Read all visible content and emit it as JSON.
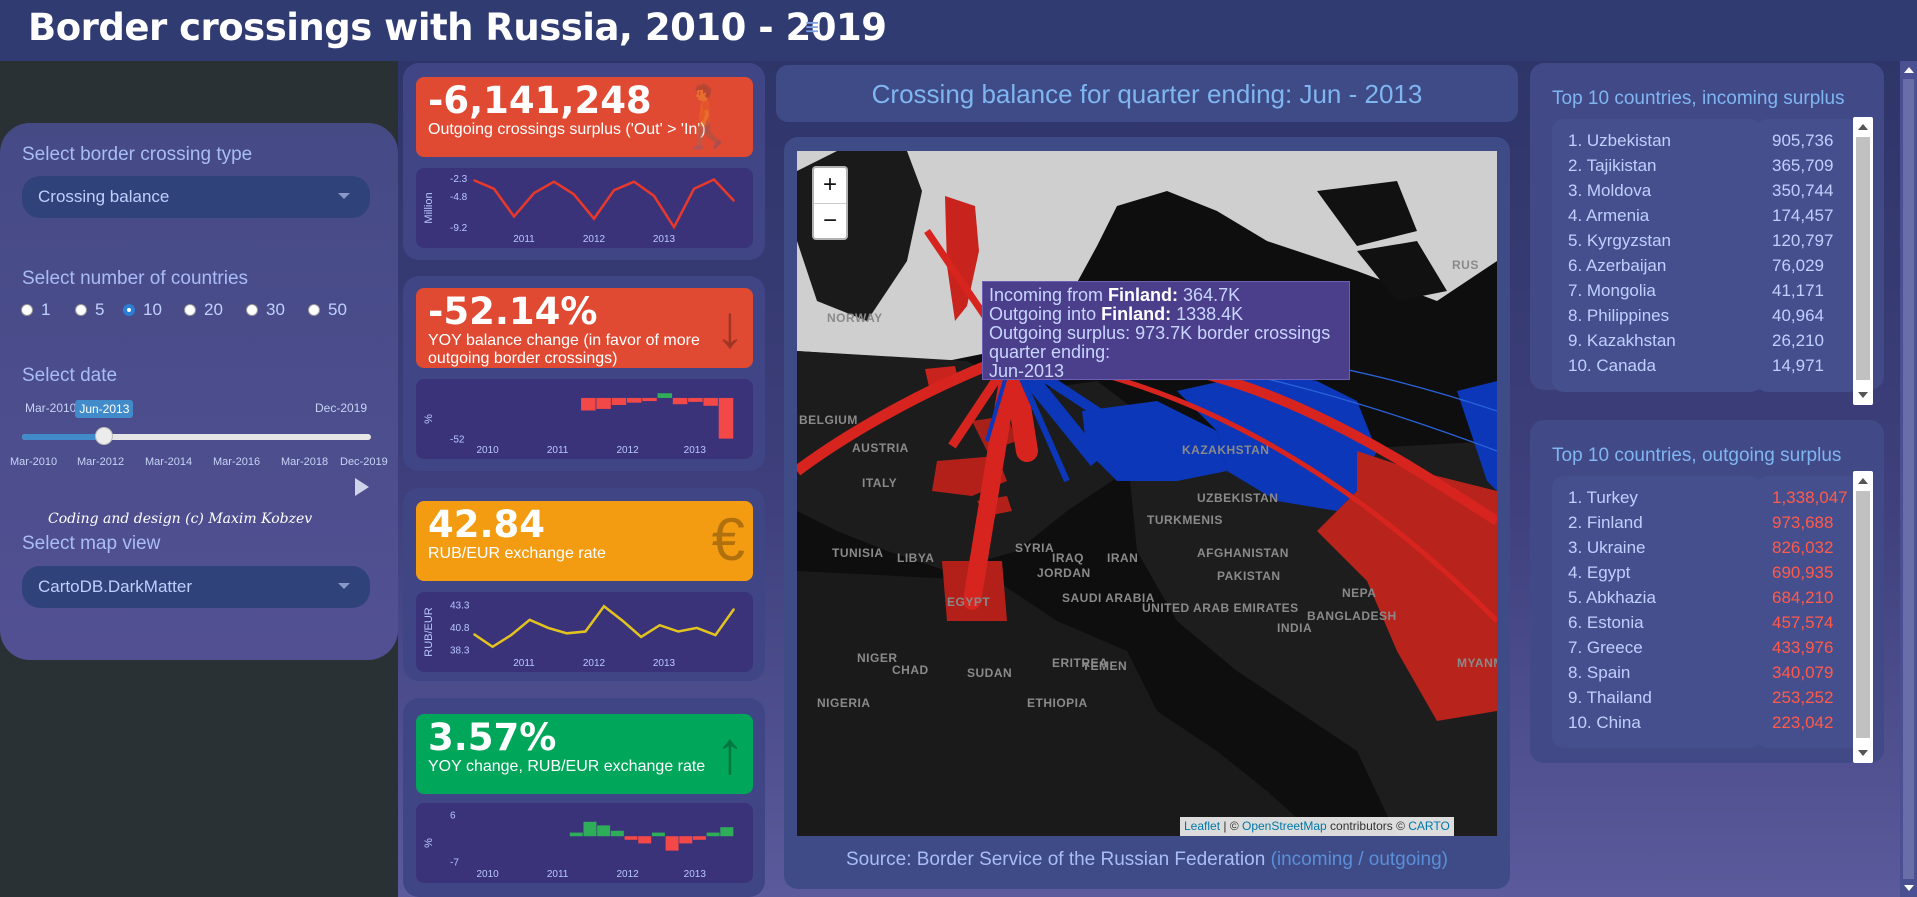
{
  "header": {
    "title": "Border crossings with Russia, 2010 - 2019"
  },
  "sidebar": {
    "crossing_type_label": "Select border crossing type",
    "crossing_type_value": "Crossing balance",
    "countries_label": "Select number of countries",
    "countries_options": [
      "1",
      "5",
      "10",
      "20",
      "30",
      "50"
    ],
    "countries_selected": "10",
    "date_label": "Select date",
    "date_min": "Mar-2010",
    "date_value": "Jun-2013",
    "date_max": "Dec-2019",
    "date_position": 0.236,
    "date_ticks": [
      "Mar-2010",
      "Mar-2012",
      "Mar-2014",
      "Mar-2016",
      "Mar-2018",
      "Dec-2019"
    ],
    "map_view_label": "Select map view",
    "map_view_value": "CartoDB.DarkMatter",
    "credit": "Coding and design (c) Maxim Kobzev"
  },
  "kpis": [
    {
      "value": "-6,141,248",
      "label": "Outgoing crossings surplus ('Out' > 'In')",
      "color": "#e04a33",
      "icon": "walking-person-icon",
      "glyph": "🚶"
    },
    {
      "value": "-52.14%",
      "label": "YOY balance change (in favor of more outgoing border crossings)",
      "color": "#e04a33",
      "icon": "arrow-down-icon",
      "glyph": "↓"
    },
    {
      "value": "42.84",
      "label": "RUB/EUR exchange rate",
      "color": "#f39c12",
      "icon": "euro-icon",
      "glyph": "€"
    },
    {
      "value": "3.57%",
      "label": "YOY change, RUB/EUR exchange rate",
      "color": "#00a65a",
      "icon": "arrow-up-icon",
      "glyph": "↑"
    }
  ],
  "chart_data": [
    {
      "type": "line",
      "ylabel": "Million",
      "yticks": [
        "-2.3",
        "-4.8",
        "-9.2"
      ],
      "xticks": [
        "2011",
        "2012",
        "2013"
      ],
      "ylim": [
        -9.6,
        -2.0
      ],
      "color": "#e8392b",
      "values": [
        -2.6,
        -3.8,
        -7.7,
        -4.4,
        -2.8,
        -4.6,
        -8.0,
        -4.0,
        -2.8,
        -4.8,
        -9.2,
        -3.8,
        -2.5,
        -5.5
      ]
    },
    {
      "type": "bar",
      "ylabel": "%",
      "yticks": [
        "-52"
      ],
      "xticks": [
        "2010",
        "2011",
        "2012",
        "2013"
      ],
      "ylim": [
        -55,
        14
      ],
      "pos_color": "#2fae5a",
      "neg_color": "#f24848",
      "values": [
        0,
        0,
        0,
        0,
        0,
        0,
        0,
        -16,
        -14,
        -9,
        -6,
        -4,
        6,
        -8,
        -5,
        -10,
        -52
      ]
    },
    {
      "type": "line",
      "ylabel": "RUB/EUR",
      "yticks": [
        "43.3",
        "40.8",
        "38.3"
      ],
      "xticks": [
        "2011",
        "2012",
        "2013"
      ],
      "ylim": [
        37.8,
        43.8
      ],
      "color": "#e3c41f",
      "values": [
        40.0,
        38.6,
        39.9,
        41.6,
        40.7,
        40.1,
        40.3,
        43.1,
        41.5,
        39.7,
        41.0,
        40.3,
        40.7,
        39.9,
        42.8
      ]
    },
    {
      "type": "bar",
      "ylabel": "%",
      "yticks": [
        "6",
        "-7"
      ],
      "xticks": [
        "2010",
        "2011",
        "2012",
        "2013"
      ],
      "ylim": [
        -8,
        7
      ],
      "pos_color": "#2fae5a",
      "neg_color": "#f24848",
      "values": [
        0,
        0,
        0,
        0,
        0,
        0,
        0,
        1,
        4,
        3,
        1.5,
        -1,
        -2,
        1,
        -4,
        -2,
        -1,
        1,
        2.5
      ]
    }
  ],
  "map": {
    "title": "Crossing balance for quarter ending: Jun - 2013",
    "zoom_in": "+",
    "zoom_out": "−",
    "labels": [
      "NORWAY",
      "BELGIUM",
      "AUSTRIA",
      "ITALY",
      "TUNISIA",
      "LIBYA",
      "EGYPT",
      "SYRIA",
      "IRAQ",
      "IRAN",
      "JORDAN",
      "SAUDI ARABIA",
      "UNITED ARAB EMIRATES",
      "AFGHANISTAN",
      "PAKISTAN",
      "INDIA",
      "KAZAKHSTAN",
      "UZBEKISTAN",
      "TURKMENIS",
      "NIGER",
      "CHAD",
      "SUDAN",
      "ERITREA",
      "YEMEN",
      "ETHIOPIA",
      "NIGERIA",
      "BANGLADESH",
      "MYANM",
      "NEPA",
      "RUS"
    ],
    "tooltip": {
      "line1_prefix": "Incoming from ",
      "line1_country": "Finland:",
      "line1_value": " 364.7K",
      "line2_prefix": "Outgoing into ",
      "line2_country": "Finland:",
      "line2_value": " 1338.4K",
      "line3": "Outgoing surplus: 973.7K border crossings",
      "line4": "quarter ending:",
      "line5": "Jun-2013"
    },
    "attribution": {
      "leaflet": "Leaflet",
      "sep": " | © ",
      "osm": "OpenStreetMap",
      "contrib": " contributors © ",
      "carto": "CARTO"
    },
    "source": "Source: Border Service of the Russian Federation",
    "source_legend": "(incoming / outgoing)",
    "colors": {
      "incoming": "#1336b0",
      "outgoing": "#d8241f",
      "country_out": "#b8231c",
      "country_in": "#0b37b8"
    }
  },
  "incoming": {
    "title": "Top 10 countries, incoming surplus",
    "names": [
      "1. Uzbekistan",
      "2. Tajikistan",
      "3. Moldova",
      "4. Armenia",
      "5. Kyrgyzstan",
      "6. Azerbaijan",
      "7. Mongolia",
      "8. Philippines",
      "9. Kazakhstan",
      "10. Canada"
    ],
    "values": [
      "905,736",
      "365,709",
      "350,744",
      "174,457",
      "120,797",
      "76,029",
      "41,171",
      "40,964",
      "26,210",
      "14,971"
    ]
  },
  "outgoing": {
    "title": "Top 10 countries, outgoing surplus",
    "names": [
      "1. Turkey",
      "2. Finland",
      "3. Ukraine",
      "4. Egypt",
      "5. Abkhazia",
      "6. Estonia",
      "7. Greece",
      "8. Spain",
      "9. Thailand",
      "10. China"
    ],
    "values": [
      "1,338,047",
      "973,688",
      "826,032",
      "690,935",
      "684,210",
      "457,574",
      "433,976",
      "340,079",
      "253,252",
      "223,042"
    ]
  }
}
